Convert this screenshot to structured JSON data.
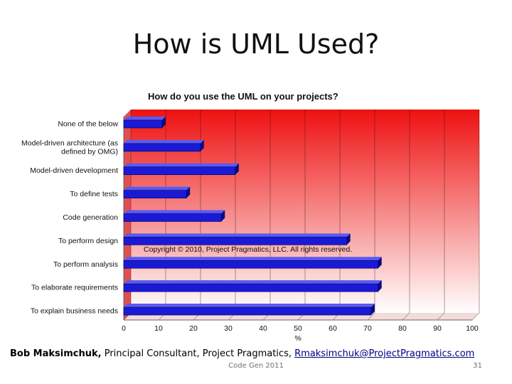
{
  "slide": {
    "title": "How is UML Used?",
    "footer": {
      "author": "Bob Maksimchuk,",
      "role": " Principal Consultant, Project Pragmatics, ",
      "email": "Rmaksimchuk@ProjectPragmatics.com",
      "event": "Code Gen 2011",
      "page_number": "31"
    }
  },
  "colors": {
    "bar": "#1a1ad6",
    "bar_top": "#5a5af0",
    "bar_side": "#0a0a80",
    "plot_bg_top": "#ee1111",
    "plot_bg_bottom": "#ffffff",
    "grid": "#2a0a0a"
  },
  "chart_data": {
    "type": "bar",
    "orientation": "horizontal",
    "title": "How do you use the UML on your projects?",
    "xlabel": "%",
    "ylabel": "",
    "xlim": [
      0,
      100
    ],
    "x_ticks": [
      "0",
      "10",
      "20",
      "30",
      "40",
      "50",
      "60",
      "70",
      "80",
      "90",
      "100"
    ],
    "grid": true,
    "legend": "none",
    "annotation": "Copyright © 2010, Project Pragmatics, LLC.  All rights reserved.",
    "categories": [
      [
        "None of the below"
      ],
      [
        "Model-driven architecture (as",
        "defined by OMG)"
      ],
      [
        "Model-driven development"
      ],
      [
        "To define tests"
      ],
      [
        "Code generation"
      ],
      [
        "To perform design"
      ],
      [
        "To perform analysis"
      ],
      [
        "To elaborate requirements"
      ],
      [
        "To explain business needs"
      ]
    ],
    "values": [
      11,
      22,
      32,
      18,
      28,
      64,
      73,
      73,
      71
    ]
  }
}
